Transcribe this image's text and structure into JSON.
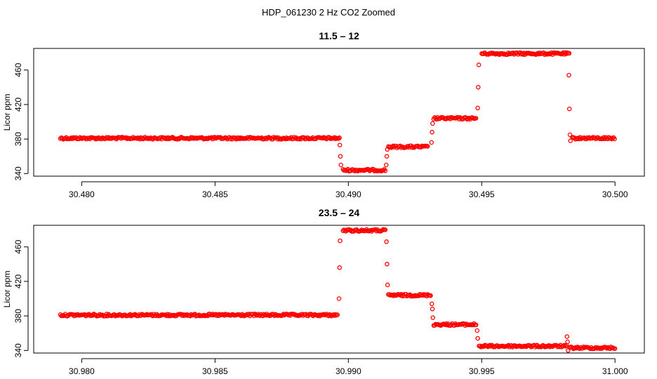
{
  "figure": {
    "title": "HDP_061230  2 Hz CO2 Zoomed",
    "point_color": "#ff0000"
  },
  "chart_data": [
    {
      "type": "scatter",
      "title": "11.5 – 12",
      "xlabel": "",
      "ylabel": "Licor ppm",
      "xlim": [
        30.4782,
        30.5011
      ],
      "ylim": [
        337,
        485
      ],
      "xticks": [
        30.48,
        30.485,
        30.49,
        30.495,
        30.5
      ],
      "xtick_labels": [
        "30.480",
        "30.485",
        "30.490",
        "30.495",
        "30.500"
      ],
      "yticks": [
        340,
        380,
        420,
        460
      ],
      "ytick_labels": [
        "340",
        "380",
        "420",
        "460"
      ],
      "grid": false,
      "segments": [
        {
          "x_start": 30.4792,
          "x_end": 30.4897,
          "y": 381
        },
        {
          "x_start": 30.4898,
          "x_end": 30.4914,
          "y": 344
        },
        {
          "x_start": 30.4915,
          "x_end": 30.493,
          "y": 371
        },
        {
          "x_start": 30.4932,
          "x_end": 30.4948,
          "y": 404
        },
        {
          "x_start": 30.495,
          "x_end": 30.4983,
          "y": 479
        },
        {
          "x_start": 30.4984,
          "x_end": 30.5,
          "y": 381
        }
      ],
      "transition_points": [
        {
          "x": 30.48968,
          "y": 373
        },
        {
          "x": 30.4897,
          "y": 360
        },
        {
          "x": 30.48972,
          "y": 350
        },
        {
          "x": 30.49142,
          "y": 350
        },
        {
          "x": 30.49144,
          "y": 360
        },
        {
          "x": 30.49146,
          "y": 368
        },
        {
          "x": 30.49312,
          "y": 376
        },
        {
          "x": 30.49314,
          "y": 388
        },
        {
          "x": 30.49316,
          "y": 398
        },
        {
          "x": 30.49485,
          "y": 416
        },
        {
          "x": 30.49487,
          "y": 440
        },
        {
          "x": 30.49489,
          "y": 466
        },
        {
          "x": 30.49827,
          "y": 454
        },
        {
          "x": 30.49829,
          "y": 415
        },
        {
          "x": 30.49831,
          "y": 385
        },
        {
          "x": 30.49833,
          "y": 378
        }
      ]
    },
    {
      "type": "scatter",
      "title": "23.5 – 24",
      "xlabel": "",
      "ylabel": "Licor ppm",
      "xlim": [
        30.9782,
        31.0011
      ],
      "ylim": [
        337,
        485
      ],
      "xticks": [
        30.98,
        30.985,
        30.99,
        30.995,
        31.0
      ],
      "xtick_labels": [
        "30.980",
        "30.985",
        "30.990",
        "30.995",
        "31.000"
      ],
      "yticks": [
        340,
        380,
        420,
        460
      ],
      "ytick_labels": [
        "340",
        "380",
        "420",
        "460"
      ],
      "grid": false,
      "segments": [
        {
          "x_start": 30.9792,
          "x_end": 30.9896,
          "y": 381
        },
        {
          "x_start": 30.9898,
          "x_end": 30.9914,
          "y": 479
        },
        {
          "x_start": 30.9915,
          "x_end": 30.9931,
          "y": 404
        },
        {
          "x_start": 30.9932,
          "x_end": 30.9948,
          "y": 370
        },
        {
          "x_start": 30.9949,
          "x_end": 30.9982,
          "y": 345
        },
        {
          "x_start": 30.9983,
          "x_end": 31.0,
          "y": 343
        }
      ],
      "transition_points": [
        {
          "x": 30.98965,
          "y": 400
        },
        {
          "x": 30.98967,
          "y": 436
        },
        {
          "x": 30.98969,
          "y": 467
        },
        {
          "x": 30.99143,
          "y": 466
        },
        {
          "x": 30.99145,
          "y": 440
        },
        {
          "x": 30.99147,
          "y": 416
        },
        {
          "x": 30.99313,
          "y": 394
        },
        {
          "x": 30.99315,
          "y": 388
        },
        {
          "x": 30.99317,
          "y": 378
        },
        {
          "x": 30.99483,
          "y": 363
        },
        {
          "x": 30.99485,
          "y": 354
        },
        {
          "x": 30.9982,
          "y": 356
        },
        {
          "x": 30.99822,
          "y": 350
        },
        {
          "x": 30.99824,
          "y": 340
        }
      ]
    }
  ]
}
